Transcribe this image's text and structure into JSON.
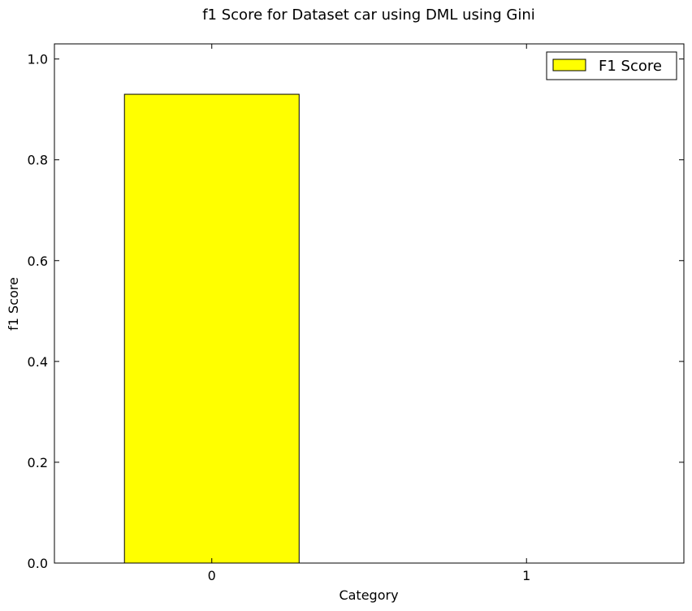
{
  "chart_data": {
    "type": "bar",
    "title": "f1 Score for Dataset car using DML using Gini",
    "xlabel": "Category",
    "ylabel": "f1 Score",
    "categories": [
      "0",
      "1"
    ],
    "series": [
      {
        "name": "F1 Score",
        "values": [
          0.93,
          0.0
        ],
        "color": "#ffff00"
      }
    ],
    "ylim": [
      0,
      1.03
    ],
    "yticks": [
      0.0,
      0.2,
      0.4,
      0.6,
      0.8,
      1.0
    ],
    "ytick_labels": [
      "0.0",
      "0.2",
      "0.4",
      "0.6",
      "0.8",
      "1.0"
    ],
    "grid": false,
    "legend_position": "top-right"
  }
}
